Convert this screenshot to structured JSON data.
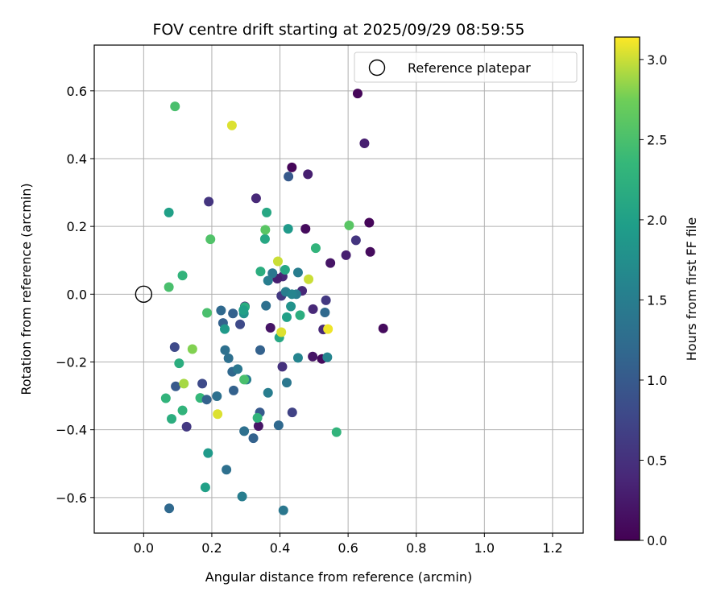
{
  "chart_data": {
    "type": "scatter",
    "title": "FOV centre drift starting at 2025/09/29 08:59:55",
    "xlabel": "Angular distance from reference (arcmin)",
    "ylabel": "Rotation from reference (arcmin)",
    "xlim": [
      -0.145,
      1.29
    ],
    "ylim": [
      -0.705,
      0.735
    ],
    "xticks": [
      0.0,
      0.2,
      0.4,
      0.6,
      0.8,
      1.0,
      1.2
    ],
    "xtick_labels": [
      "0.0",
      "0.2",
      "0.4",
      "0.6",
      "0.8",
      "1.0",
      "1.2"
    ],
    "yticks": [
      -0.6,
      -0.4,
      -0.2,
      0.0,
      0.2,
      0.4,
      0.6
    ],
    "ytick_labels": [
      "−0.6",
      "−0.4",
      "−0.2",
      "0.0",
      "0.2",
      "0.4",
      "0.6"
    ],
    "grid": true,
    "legend": {
      "position": "top-right",
      "entries": [
        {
          "label": "Reference platepar",
          "marker": "hollow-circle"
        }
      ]
    },
    "reference_point": {
      "x": 0.0,
      "y": 0.0
    },
    "colorbar": {
      "label": "Hours from first FF file",
      "range": [
        0.0,
        3.14
      ],
      "ticks": [
        0.0,
        0.5,
        1.0,
        1.5,
        2.0,
        2.5,
        3.0
      ],
      "tick_labels": [
        "0.0",
        "0.5",
        "1.0",
        "1.5",
        "2.0",
        "2.5",
        "3.0"
      ],
      "colormap": "viridis"
    },
    "points": [
      {
        "x": 0.628,
        "y": 0.592,
        "c": 0.05
      },
      {
        "x": 0.648,
        "y": 0.445,
        "c": 0.3
      },
      {
        "x": 0.435,
        "y": 0.374,
        "c": 0.05
      },
      {
        "x": 0.482,
        "y": 0.354,
        "c": 0.3
      },
      {
        "x": 0.425,
        "y": 0.347,
        "c": 1.0
      },
      {
        "x": 0.33,
        "y": 0.283,
        "c": 0.4
      },
      {
        "x": 0.191,
        "y": 0.273,
        "c": 0.55
      },
      {
        "x": 0.662,
        "y": 0.211,
        "c": 0.05
      },
      {
        "x": 0.475,
        "y": 0.193,
        "c": 0.1
      },
      {
        "x": 0.623,
        "y": 0.159,
        "c": 0.55
      },
      {
        "x": 0.665,
        "y": 0.125,
        "c": 0.1
      },
      {
        "x": 0.594,
        "y": 0.115,
        "c": 0.3
      },
      {
        "x": 0.548,
        "y": 0.092,
        "c": 0.2
      },
      {
        "x": 0.408,
        "y": 0.052,
        "c": 0.4
      },
      {
        "x": 0.392,
        "y": 0.046,
        "c": 0.3
      },
      {
        "x": 0.465,
        "y": 0.01,
        "c": 0.4
      },
      {
        "x": 0.404,
        "y": -0.005,
        "c": 0.6
      },
      {
        "x": 0.535,
        "y": -0.018,
        "c": 0.6
      },
      {
        "x": 0.497,
        "y": -0.044,
        "c": 0.4
      },
      {
        "x": 0.372,
        "y": -0.099,
        "c": 0.2
      },
      {
        "x": 0.527,
        "y": -0.104,
        "c": 0.4
      },
      {
        "x": 0.703,
        "y": -0.101,
        "c": 0.1
      },
      {
        "x": 0.523,
        "y": -0.191,
        "c": 0.1
      },
      {
        "x": 0.496,
        "y": -0.184,
        "c": 0.2
      },
      {
        "x": 0.407,
        "y": -0.214,
        "c": 0.5
      },
      {
        "x": 0.436,
        "y": -0.349,
        "c": 0.7
      },
      {
        "x": 0.337,
        "y": -0.389,
        "c": 0.2
      },
      {
        "x": 0.091,
        "y": -0.156,
        "c": 0.8
      },
      {
        "x": 0.126,
        "y": -0.391,
        "c": 0.6
      },
      {
        "x": 0.172,
        "y": -0.264,
        "c": 0.8
      },
      {
        "x": 0.297,
        "y": -0.036,
        "c": 0.3
      },
      {
        "x": 0.283,
        "y": -0.089,
        "c": 0.8
      },
      {
        "x": 0.262,
        "y": -0.057,
        "c": 1.1
      },
      {
        "x": 0.227,
        "y": -0.048,
        "c": 1.2
      },
      {
        "x": 0.233,
        "y": -0.085,
        "c": 1.1
      },
      {
        "x": 0.26,
        "y": -0.229,
        "c": 1.2
      },
      {
        "x": 0.249,
        "y": -0.189,
        "c": 1.3
      },
      {
        "x": 0.239,
        "y": -0.165,
        "c": 1.3
      },
      {
        "x": 0.276,
        "y": -0.221,
        "c": 1.4
      },
      {
        "x": 0.264,
        "y": -0.284,
        "c": 1.1
      },
      {
        "x": 0.302,
        "y": -0.252,
        "c": 1.5
      },
      {
        "x": 0.342,
        "y": -0.165,
        "c": 1.1
      },
      {
        "x": 0.341,
        "y": -0.349,
        "c": 1.0
      },
      {
        "x": 0.322,
        "y": -0.425,
        "c": 1.1
      },
      {
        "x": 0.295,
        "y": -0.404,
        "c": 1.3
      },
      {
        "x": 0.166,
        "y": -0.306,
        "c": 2.35
      },
      {
        "x": 0.185,
        "y": -0.311,
        "c": 1.1
      },
      {
        "x": 0.094,
        "y": -0.272,
        "c": 1.0
      },
      {
        "x": 0.215,
        "y": -0.301,
        "c": 1.3
      },
      {
        "x": 0.396,
        "y": -0.387,
        "c": 1.2
      },
      {
        "x": 0.365,
        "y": -0.291,
        "c": 1.5
      },
      {
        "x": 0.42,
        "y": -0.261,
        "c": 1.4
      },
      {
        "x": 0.453,
        "y": -0.188,
        "c": 1.6
      },
      {
        "x": 0.539,
        "y": -0.186,
        "c": 1.6
      },
      {
        "x": 0.532,
        "y": -0.054,
        "c": 1.2
      },
      {
        "x": 0.448,
        "y": 0.0,
        "c": 1.5
      },
      {
        "x": 0.453,
        "y": 0.064,
        "c": 1.5
      },
      {
        "x": 0.359,
        "y": -0.034,
        "c": 1.3
      },
      {
        "x": 0.378,
        "y": 0.062,
        "c": 1.4
      },
      {
        "x": 0.365,
        "y": 0.04,
        "c": 1.5
      },
      {
        "x": 0.417,
        "y": 0.007,
        "c": 1.5
      },
      {
        "x": 0.435,
        "y": 0.0,
        "c": 1.6
      },
      {
        "x": 0.432,
        "y": -0.036,
        "c": 1.8
      },
      {
        "x": 0.42,
        "y": -0.068,
        "c": 2.0
      },
      {
        "x": 0.398,
        "y": -0.128,
        "c": 2.1
      },
      {
        "x": 0.294,
        "y": -0.057,
        "c": 1.8
      },
      {
        "x": 0.297,
        "y": -0.038,
        "c": 2.2
      },
      {
        "x": 0.293,
        "y": -0.047,
        "c": 2.0
      },
      {
        "x": 0.238,
        "y": -0.103,
        "c": 1.9
      },
      {
        "x": 0.189,
        "y": -0.469,
        "c": 1.9
      },
      {
        "x": 0.243,
        "y": -0.518,
        "c": 1.3
      },
      {
        "x": 0.289,
        "y": -0.597,
        "c": 1.5
      },
      {
        "x": 0.181,
        "y": -0.57,
        "c": 2.0
      },
      {
        "x": 0.075,
        "y": -0.632,
        "c": 1.2
      },
      {
        "x": 0.41,
        "y": -0.638,
        "c": 1.4
      },
      {
        "x": 0.334,
        "y": -0.365,
        "c": 2.3
      },
      {
        "x": 0.566,
        "y": -0.407,
        "c": 2.3
      },
      {
        "x": 0.295,
        "y": -0.252,
        "c": 2.5
      },
      {
        "x": 0.065,
        "y": -0.307,
        "c": 2.3
      },
      {
        "x": 0.082,
        "y": -0.368,
        "c": 2.2
      },
      {
        "x": 0.114,
        "y": -0.343,
        "c": 2.3
      },
      {
        "x": 0.104,
        "y": -0.204,
        "c": 2.2
      },
      {
        "x": 0.459,
        "y": -0.062,
        "c": 2.2
      },
      {
        "x": 0.186,
        "y": -0.055,
        "c": 2.5
      },
      {
        "x": 0.074,
        "y": 0.241,
        "c": 2.0
      },
      {
        "x": 0.361,
        "y": 0.241,
        "c": 2.1
      },
      {
        "x": 0.424,
        "y": 0.193,
        "c": 1.9
      },
      {
        "x": 0.356,
        "y": 0.163,
        "c": 2.1
      },
      {
        "x": 0.357,
        "y": 0.19,
        "c": 2.6
      },
      {
        "x": 0.196,
        "y": 0.162,
        "c": 2.55
      },
      {
        "x": 0.505,
        "y": 0.136,
        "c": 2.3
      },
      {
        "x": 0.603,
        "y": 0.203,
        "c": 2.6
      },
      {
        "x": 0.343,
        "y": 0.067,
        "c": 2.2
      },
      {
        "x": 0.415,
        "y": 0.072,
        "c": 2.1
      },
      {
        "x": 0.114,
        "y": 0.055,
        "c": 2.3
      },
      {
        "x": 0.074,
        "y": 0.021,
        "c": 2.5
      },
      {
        "x": 0.092,
        "y": 0.554,
        "c": 2.5
      },
      {
        "x": 0.259,
        "y": 0.498,
        "c": 3.05
      },
      {
        "x": 0.394,
        "y": 0.097,
        "c": 3.0
      },
      {
        "x": 0.484,
        "y": 0.044,
        "c": 3.0
      },
      {
        "x": 0.404,
        "y": -0.112,
        "c": 3.05
      },
      {
        "x": 0.541,
        "y": -0.103,
        "c": 3.1
      },
      {
        "x": 0.143,
        "y": -0.162,
        "c": 2.8
      },
      {
        "x": 0.118,
        "y": -0.264,
        "c": 2.9
      },
      {
        "x": 0.217,
        "y": -0.354,
        "c": 3.05
      }
    ]
  }
}
